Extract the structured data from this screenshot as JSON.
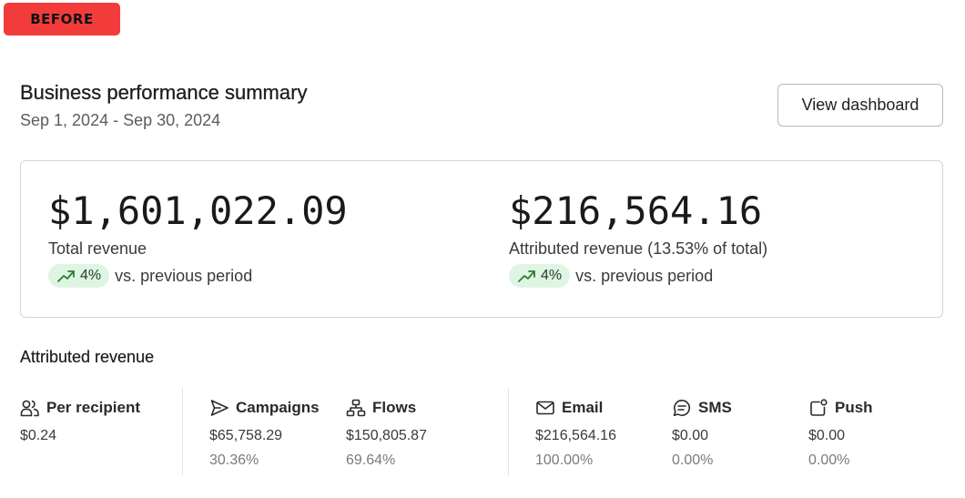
{
  "badge": "BEFORE",
  "header": {
    "title": "Business performance summary",
    "date_range": "Sep 1, 2024 - Sep 30, 2024",
    "view_dashboard_label": "View dashboard"
  },
  "summary": {
    "total": {
      "value": "$1,601,022.09",
      "label": "Total revenue",
      "change": "4%",
      "change_suffix": "vs. previous period"
    },
    "attributed": {
      "value": "$216,564.16",
      "label": "Attributed revenue (13.53% of total)",
      "change": "4%",
      "change_suffix": "vs. previous period"
    }
  },
  "attributed_section": {
    "title": "Attributed revenue",
    "per_recipient": {
      "label": "Per recipient",
      "value": "$0.24",
      "icon": "users-icon"
    },
    "campaigns": {
      "label": "Campaigns",
      "value": "$65,758.29",
      "pct": "30.36%",
      "icon": "send-icon"
    },
    "flows": {
      "label": "Flows",
      "value": "$150,805.87",
      "pct": "69.64%",
      "icon": "flows-icon"
    },
    "email": {
      "label": "Email",
      "value": "$216,564.16",
      "pct": "100.00%",
      "icon": "mail-icon"
    },
    "sms": {
      "label": "SMS",
      "value": "$0.00",
      "pct": "0.00%",
      "icon": "sms-icon"
    },
    "push": {
      "label": "Push",
      "value": "$0.00",
      "pct": "0.00%",
      "icon": "push-icon"
    }
  },
  "colors": {
    "badge": "#f23c3c",
    "positive_pill": "#dff5e3",
    "positive_icon": "#2e7d32",
    "border": "#d4d4d4"
  }
}
